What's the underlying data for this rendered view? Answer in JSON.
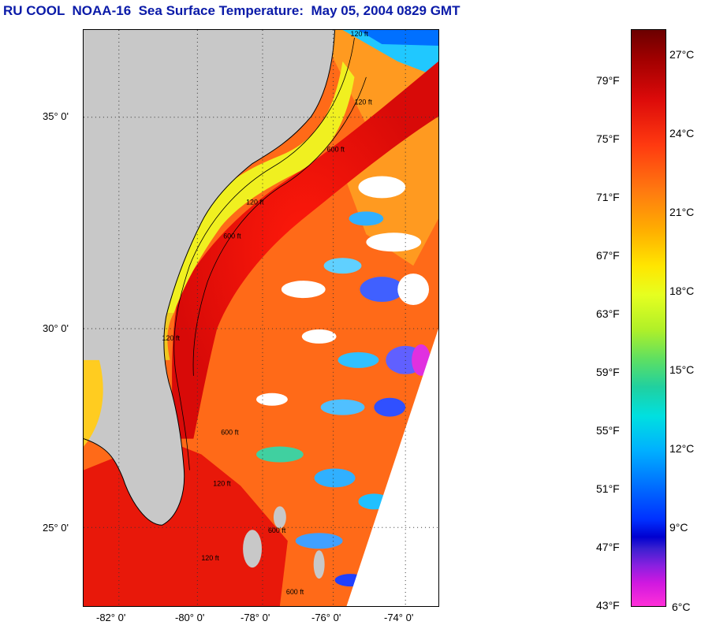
{
  "title": "RU COOL  NOAA-16  Sea Surface Temperature:  May 05, 2004 0829 GMT",
  "map": {
    "latitude_labels": [
      "35° 0'",
      "30° 0'",
      "25° 0'"
    ],
    "longitude_labels": [
      "-82° 0'",
      "-80° 0'",
      "-78° 0'",
      "-76° 0'",
      "-74° 0'"
    ],
    "contour_labels": [
      "120 ft",
      "120 ft",
      "600 ft",
      "120 ft",
      "600 ft",
      "120 ft",
      "600 ft",
      "120 ft",
      "600 ft",
      "120 ft",
      "600 ft"
    ],
    "colors": {
      "land": "#c8c8c8",
      "no_data": "#ffffff",
      "gulf_stream": "#e8100a",
      "coastal_shelf": "#e6f020",
      "offshore": "#ff7a10"
    }
  },
  "colorbar": {
    "fahrenheit_labels": [
      "79°F",
      "75°F",
      "71°F",
      "67°F",
      "63°F",
      "59°F",
      "55°F",
      "51°F",
      "47°F",
      "43°F"
    ],
    "celsius_labels": [
      "27°C",
      "24°C",
      "21°C",
      "18°C",
      "15°C",
      "12°C",
      "9°C",
      "6°C"
    ],
    "fahrenheit_values": [
      79,
      75,
      71,
      67,
      63,
      59,
      55,
      51,
      47,
      43
    ],
    "celsius_values": [
      27,
      24,
      21,
      18,
      15,
      12,
      9,
      6
    ],
    "range_fahrenheit": [
      43,
      82
    ]
  }
}
